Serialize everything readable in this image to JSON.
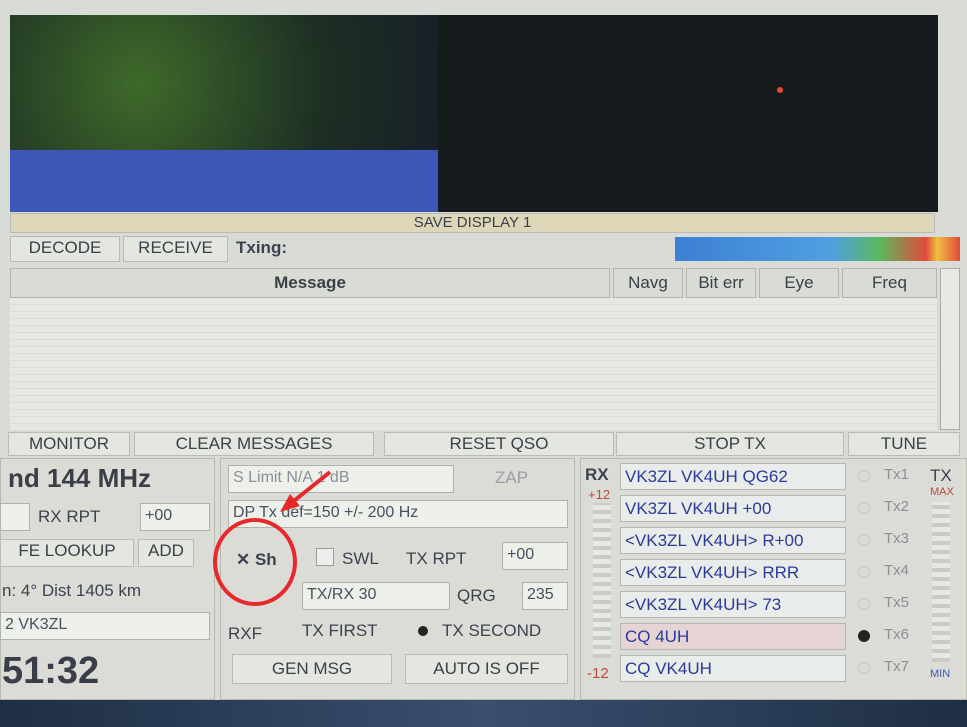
{
  "toolbar": {
    "save_display": "SAVE DISPLAY 1",
    "decode": "DECODE",
    "receive": "RECEIVE",
    "txing": "Txing:"
  },
  "table": {
    "headers": [
      "Message",
      "Navg",
      "Bit err",
      "Eye",
      "Freq"
    ]
  },
  "buttons": [
    "MONITOR",
    "CLEAR MESSAGES",
    "RESET QSO",
    "STOP TX",
    "TUNE"
  ],
  "left": {
    "band": "nd 144 MHz",
    "rx_rpt": "RX RPT",
    "rx_rpt_value": "+00",
    "lookup": "FE LOOKUP",
    "add": "ADD",
    "dist": "n: 4°  Dist  1405 km",
    "call": "2   VK3ZL",
    "time": "51:32"
  },
  "middle": {
    "s_limit": "S Limit  N/A  1 dB",
    "zap": "ZAP",
    "dp": "DP Tx  def=150 +/-  200  Hz",
    "sh": "Sh",
    "swl": "SWL",
    "tx_rpt": "TX RPT",
    "tx_rpt_value": "+00",
    "txrx": "TX/RX 30",
    "qrg": "QRG",
    "qrg_value": "235",
    "rxf": "RXF",
    "tx_first": "TX FIRST",
    "tx_second": "TX SECOND",
    "gen_msg": "GEN MSG",
    "auto": "AUTO IS OFF"
  },
  "right": {
    "rx": "RX",
    "scale_top": "+12",
    "scale_bottom": "-12",
    "tx": "TX",
    "max": "MAX",
    "min": "MIN",
    "messages": [
      "VK3ZL VK4UH QG62",
      "VK3ZL VK4UH +00",
      "<VK3ZL VK4UH> R+00",
      "<VK3ZL VK4UH> RRR",
      "<VK3ZL VK4UH> 73",
      "CQ 4UH",
      "CQ  VK4UH"
    ],
    "tx_labels": [
      "Tx1",
      "Tx2",
      "Tx3",
      "Tx4",
      "Tx5",
      "Tx6",
      "Tx7"
    ]
  }
}
